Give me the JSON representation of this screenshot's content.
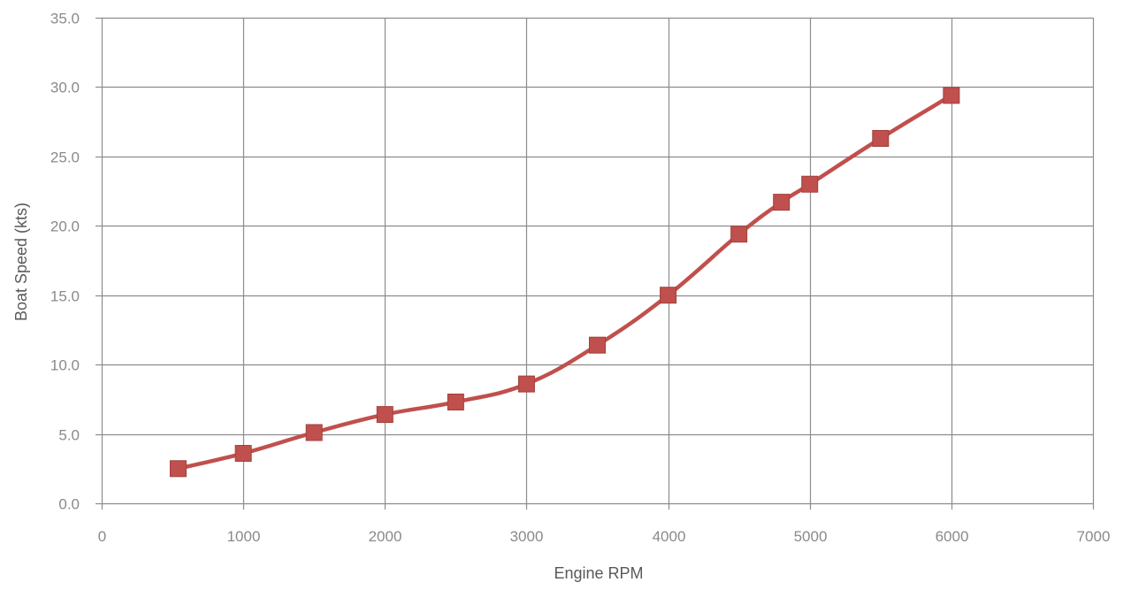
{
  "chart_data": {
    "type": "line",
    "title": "",
    "xlabel": "Engine RPM",
    "ylabel": "Boat Speed (kts)",
    "xlim": [
      0,
      7000
    ],
    "ylim": [
      0,
      35
    ],
    "x_ticks": [
      0,
      1000,
      2000,
      3000,
      4000,
      5000,
      6000,
      7000
    ],
    "x_tick_labels": [
      "0",
      "1000",
      "2000",
      "3000",
      "4000",
      "5000",
      "6000",
      "7000"
    ],
    "y_ticks": [
      0,
      5,
      10,
      15,
      20,
      25,
      30,
      35
    ],
    "y_tick_labels": [
      "0.0",
      "5.0",
      "10.0",
      "15.0",
      "20.0",
      "25.0",
      "30.0",
      "35.0"
    ],
    "grid": true,
    "legend": "none",
    "series": [
      {
        "color": "#c0504d",
        "marker": "square",
        "smooth": true,
        "x": [
          540,
          1000,
          1500,
          2000,
          2500,
          3000,
          3500,
          4000,
          4500,
          4800,
          5000,
          5500,
          6000
        ],
        "y": [
          2.5,
          3.6,
          5.1,
          6.4,
          7.3,
          8.6,
          11.4,
          15.0,
          19.4,
          21.7,
          23.0,
          26.3,
          29.4
        ]
      }
    ]
  },
  "colors": {
    "grid": "#8c8c8c",
    "tick_text": "#8a8a8a",
    "axis_title": "#595959"
  }
}
